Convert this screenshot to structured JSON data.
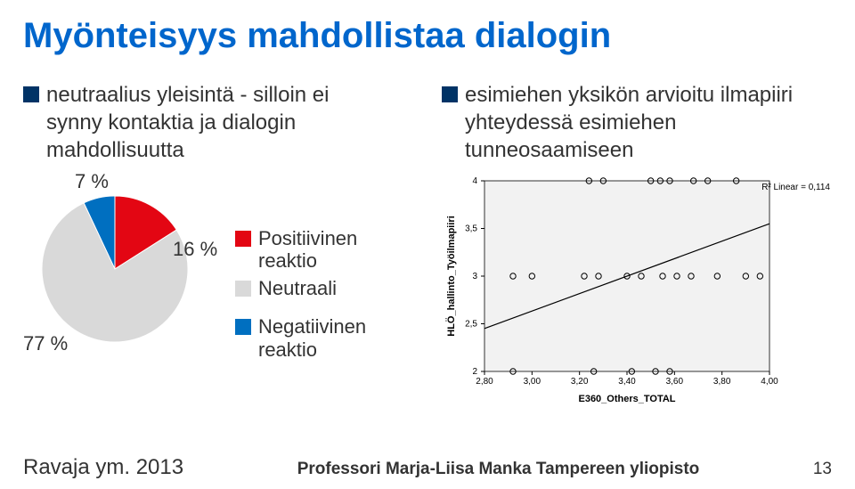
{
  "title": "Myönteisyys mahdollistaa dialogin",
  "left_bullet": "neutraalius yleisintä  - silloin ei\nsynny kontaktia ja dialogin\nmahdollisuutta",
  "right_bullet": "esimiehen yksikön arvioitu ilmapiiri\nyhteydessä esimiehen\ntunneosaamiseen",
  "pie": {
    "type": "pie",
    "slices": [
      {
        "label": "7 %",
        "value": 7,
        "color": "#006fc0"
      },
      {
        "label": "16 %",
        "value": 16,
        "color": "#e30613"
      },
      {
        "label": "77 %",
        "value": 77,
        "color": "#d9d9d9"
      }
    ]
  },
  "legend": [
    {
      "color": "#e30613",
      "text": "Positiivinen\nreaktio"
    },
    {
      "color": "#d9d9d9",
      "text": "Neutraali"
    },
    {
      "color": "#006fc0",
      "text": "Negatiivinen\nreaktio"
    }
  ],
  "scatter": {
    "type": "scatter",
    "xlabel": "E360_Others_TOTAL",
    "ylabel": "HLÖ_hallinto_Työilmapiiri",
    "xlim": [
      2.8,
      4.0
    ],
    "ylim": [
      2.0,
      4.0
    ],
    "xticks": [
      2.8,
      3.0,
      3.2,
      3.4,
      3.6,
      3.8,
      4.0
    ],
    "yticks": [
      2.0,
      2.5,
      3.0,
      3.5,
      4.0
    ],
    "r2_label": "R² Linear = 0,114",
    "marker_color": "#000000",
    "marker_fill": "none",
    "marker_radius": 3.2,
    "line_color": "#000000",
    "line": {
      "x1": 2.8,
      "y1": 2.45,
      "x2": 4.0,
      "y2": 3.55
    },
    "background_color": "#f2f2f2",
    "points": [
      [
        2.92,
        3.0
      ],
      [
        3.0,
        3.0
      ],
      [
        3.22,
        3.0
      ],
      [
        3.28,
        3.0
      ],
      [
        3.4,
        3.0
      ],
      [
        3.46,
        3.0
      ],
      [
        3.55,
        3.0
      ],
      [
        3.61,
        3.0
      ],
      [
        3.67,
        3.0
      ],
      [
        3.78,
        3.0
      ],
      [
        3.9,
        3.0
      ],
      [
        3.96,
        3.0
      ],
      [
        3.24,
        4.0
      ],
      [
        3.3,
        4.0
      ],
      [
        3.5,
        4.0
      ],
      [
        3.54,
        4.0
      ],
      [
        3.58,
        4.0
      ],
      [
        3.68,
        4.0
      ],
      [
        3.74,
        4.0
      ],
      [
        3.86,
        4.0
      ],
      [
        2.92,
        2.0
      ],
      [
        3.26,
        2.0
      ],
      [
        3.42,
        2.0
      ],
      [
        3.52,
        2.0
      ],
      [
        3.58,
        2.0
      ]
    ]
  },
  "footer": {
    "source": "Ravaja ym. 2013",
    "attribution": "Professori Marja-Liisa Manka Tampereen yliopisto",
    "page": "13"
  },
  "colors": {
    "title": "#0066cc",
    "bullet_navy": "#003366"
  }
}
